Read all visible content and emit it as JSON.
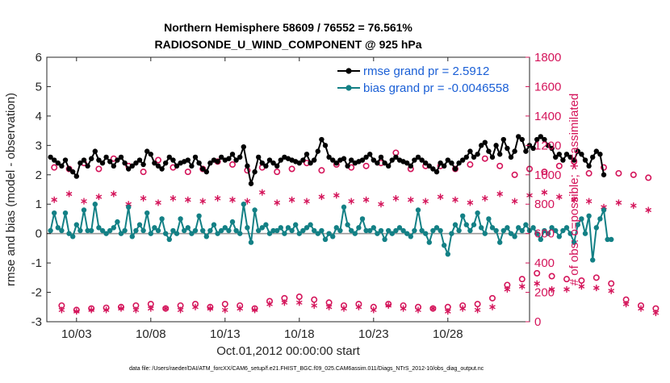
{
  "chart_data": {
    "type": "line",
    "title": "Northern Hemisphere 58609 / 76552 = 76.561%",
    "subtitle": "RADIOSONDE_U_WIND_COMPONENT @ 925 hPa",
    "xlabel": "Oct.01,2012 00:00:00 start",
    "ylabel_left": "rmse and bias (model - observation)",
    "ylabel_right": "# of obs: o=possible; ∗=assimilated",
    "footer": "data file: /Users/raeder/DAI/ATM_forcXX/CAM6_setup/f.e21.FHIST_BGC.f09_025.CAM6assim.011/Diags_NTrS_2012-10/obs_diag_output.nc",
    "xlim": [
      1,
      33.5
    ],
    "ylim_left": [
      -3,
      6
    ],
    "ylim_right": [
      0,
      1800
    ],
    "x_ticks": [
      3,
      8,
      13,
      18,
      23,
      28
    ],
    "x_tick_labels": [
      "10/03",
      "10/08",
      "10/13",
      "10/18",
      "10/23",
      "10/28"
    ],
    "y_left_ticks": [
      -3,
      -2,
      -1,
      0,
      1,
      2,
      3,
      4,
      5,
      6
    ],
    "y_left_tick_labels": [
      "-3",
      "-2",
      "-1",
      "0",
      "1",
      "2",
      "3",
      "4",
      "5",
      "6"
    ],
    "y_right_ticks": [
      0,
      200,
      400,
      600,
      800,
      1000,
      1200,
      1400,
      1600,
      1800
    ],
    "y_right_tick_labels": [
      "0",
      "200",
      "400",
      "600",
      "800",
      "1000",
      "1200",
      "1400",
      "1600",
      "1800"
    ],
    "grid": false,
    "legend_position": "top-right",
    "colors": {
      "rmse": "#000000",
      "bias": "#138085",
      "obs": "#d4145a",
      "legend_text": "#1a5fd6",
      "zero_line": "#999999"
    },
    "series": [
      {
        "name": "rmse grand pr = 2.5912",
        "axis": "left",
        "marker": "filled-circle",
        "x_start": 1.25,
        "x_step": 0.25,
        "values": [
          2.6,
          2.5,
          2.4,
          2.3,
          2.5,
          2.2,
          2.1,
          1.95,
          2.4,
          2.5,
          2.3,
          2.55,
          2.8,
          2.5,
          2.4,
          2.6,
          2.45,
          2.3,
          2.5,
          2.6,
          2.4,
          2.2,
          2.3,
          2.4,
          2.5,
          2.35,
          2.8,
          2.7,
          2.4,
          2.3,
          2.2,
          2.4,
          2.6,
          2.5,
          2.3,
          2.4,
          2.45,
          2.5,
          2.3,
          2.6,
          2.4,
          2.2,
          2.1,
          2.4,
          2.5,
          2.45,
          2.6,
          2.5,
          2.55,
          2.7,
          2.5,
          2.6,
          2.95,
          2.3,
          1.7,
          2.1,
          2.6,
          2.4,
          2.3,
          2.5,
          2.4,
          2.3,
          2.5,
          2.6,
          2.55,
          2.5,
          2.45,
          2.4,
          2.5,
          2.7,
          2.4,
          2.5,
          2.8,
          3.2,
          3.0,
          2.6,
          2.5,
          2.4,
          2.5,
          2.55,
          2.3,
          2.5,
          2.4,
          2.45,
          2.5,
          2.6,
          2.7,
          2.5,
          2.4,
          2.6,
          2.4,
          2.3,
          2.5,
          2.6,
          2.5,
          2.45,
          2.4,
          2.3,
          2.5,
          2.6,
          2.5,
          2.4,
          2.3,
          2.2,
          2.1,
          2.4,
          2.3,
          2.5,
          2.4,
          2.2,
          2.4,
          2.5,
          2.6,
          2.8,
          2.6,
          2.7,
          3.0,
          3.1,
          2.8,
          2.6,
          3.0,
          2.7,
          3.2,
          2.9,
          2.6,
          2.8,
          3.3,
          3.2,
          2.8,
          3.0,
          2.9,
          3.2,
          3.3,
          3.2,
          3.0,
          2.9,
          2.6,
          2.7,
          2.5,
          2.7,
          2.6,
          2.5,
          2.8,
          2.7,
          2.5,
          2.3,
          2.6,
          2.8,
          2.7,
          2.0
        ]
      },
      {
        "name": "bias grand pr = -0.0046558",
        "axis": "left",
        "marker": "filled-circle",
        "x_start": 1.25,
        "x_step": 0.25,
        "values": [
          0.1,
          0.7,
          0.2,
          0.1,
          0.7,
          0.0,
          -0.1,
          0.3,
          0.1,
          0.8,
          0.1,
          0.1,
          1.0,
          0.2,
          0.1,
          0.0,
          0.1,
          0.2,
          0.4,
          0.0,
          0.1,
          0.9,
          -0.1,
          0.1,
          0.3,
          0.1,
          0.7,
          0.0,
          0.2,
          0.1,
          0.5,
          0.0,
          -0.2,
          0.1,
          0.0,
          0.5,
          0.1,
          0.2,
          0.0,
          0.1,
          0.6,
          0.1,
          -0.1,
          0.1,
          0.3,
          0.0,
          0.1,
          0.2,
          0.1,
          0.4,
          0.1,
          0.0,
          1.0,
          0.2,
          -0.3,
          0.8,
          0.1,
          0.2,
          0.3,
          0.0,
          0.1,
          0.1,
          0.2,
          0.0,
          0.2,
          0.1,
          0.3,
          0.0,
          0.1,
          0.2,
          0.3,
          0.1,
          0.0,
          0.1,
          -0.2,
          0.0,
          -0.1,
          0.2,
          0.1,
          0.9,
          0.3,
          0.1,
          0.0,
          0.2,
          0.5,
          0.1,
          0.1,
          0.2,
          0.0,
          0.1,
          -0.2,
          0.1,
          0.0,
          0.1,
          0.2,
          0.1,
          0.0,
          -0.1,
          0.1,
          0.8,
          0.1,
          0.0,
          -0.3,
          0.1,
          0.2,
          0.1,
          -0.4,
          -0.7,
          0.0,
          0.3,
          0.1,
          0.6,
          0.3,
          0.1,
          0.3,
          0.7,
          0.2,
          0.0,
          0.5,
          0.2,
          0.1,
          -0.3,
          0.1,
          0.2,
          0.0,
          -0.1,
          0.2,
          0.1,
          0.3,
          0.1,
          0.2,
          0.0,
          -0.2,
          0.1,
          0.0,
          0.2,
          0.1,
          -0.1,
          0.1,
          0.2,
          0.0,
          -0.3,
          0.3,
          0.5,
          0.0,
          0.6,
          -0.9,
          0.2,
          0.5,
          0.8,
          -0.2,
          -0.2
        ]
      },
      {
        "name": "possible",
        "axis": "right",
        "marker": "open-circle",
        "x_start": 1.5,
        "x_step": 0.5,
        "values": [
          1050,
          110,
          1040,
          80,
          1080,
          90,
          1040,
          95,
          1110,
          100,
          1060,
          110,
          1020,
          120,
          1100,
          90,
          1050,
          110,
          1020,
          120,
          1040,
          100,
          1090,
          120,
          1070,
          110,
          1030,
          90,
          1050,
          140,
          1020,
          160,
          1040,
          170,
          1080,
          150,
          1030,
          130,
          1070,
          110,
          1050,
          120,
          1060,
          100,
          1080,
          120,
          1150,
          110,
          1040,
          100,
          1060,
          90,
          1060,
          100,
          1040,
          110,
          1070,
          120,
          1110,
          160,
          1060,
          250,
          1000,
          290,
          1040,
          330,
          1020,
          310,
          1060,
          290,
          1090,
          280,
          1010,
          300,
          1050,
          260,
          1010,
          150,
          1000,
          110,
          980,
          90
        ]
      },
      {
        "name": "assimilated",
        "axis": "right",
        "marker": "asterisk",
        "x_start": 1.5,
        "x_step": 0.5,
        "values": [
          830,
          80,
          870,
          70,
          820,
          80,
          850,
          80,
          870,
          90,
          800,
          80,
          840,
          90,
          810,
          90,
          840,
          80,
          830,
          100,
          820,
          90,
          840,
          80,
          830,
          90,
          820,
          80,
          880,
          120,
          810,
          130,
          830,
          130,
          820,
          110,
          850,
          100,
          860,
          90,
          820,
          100,
          830,
          80,
          800,
          110,
          840,
          90,
          830,
          80,
          820,
          90,
          850,
          70,
          830,
          90,
          810,
          80,
          840,
          100,
          870,
          220,
          820,
          240,
          860,
          260,
          880,
          220,
          850,
          220,
          830,
          240,
          820,
          230,
          780,
          210,
          810,
          120,
          790,
          90,
          760,
          60
        ]
      }
    ]
  }
}
